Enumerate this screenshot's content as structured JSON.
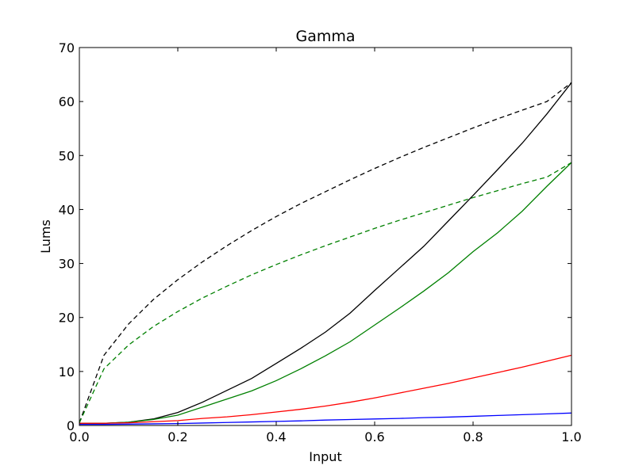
{
  "chart_data": {
    "type": "line",
    "title": "Gamma",
    "xlabel": "Input",
    "ylabel": "Lums",
    "xlim": [
      0.0,
      1.0
    ],
    "ylim": [
      0,
      70
    ],
    "x_ticks": [
      "0.0",
      "0.2",
      "0.4",
      "0.6",
      "0.8",
      "1.0"
    ],
    "y_ticks": [
      "0",
      "10",
      "20",
      "30",
      "40",
      "50",
      "60",
      "70"
    ],
    "grid": false,
    "legend": "none",
    "series": [
      {
        "color": "#000000",
        "dashed": true,
        "x": [
          0.0,
          0.05,
          0.1,
          0.15,
          0.2,
          0.25,
          0.3,
          0.35,
          0.4,
          0.45,
          0.5,
          0.55,
          0.6,
          0.65,
          0.7,
          0.75,
          0.8,
          0.85,
          0.9,
          0.95,
          1.0
        ],
        "y": [
          0.5,
          13.0,
          18.8,
          23.3,
          27.0,
          30.3,
          33.3,
          36.1,
          38.7,
          41.1,
          43.3,
          45.5,
          47.6,
          49.6,
          51.5,
          53.3,
          55.1,
          56.8,
          58.4,
          60.0,
          63.5
        ]
      },
      {
        "color": "#008000",
        "dashed": true,
        "x": [
          0.0,
          0.05,
          0.1,
          0.15,
          0.2,
          0.25,
          0.3,
          0.35,
          0.4,
          0.45,
          0.5,
          0.55,
          0.6,
          0.65,
          0.7,
          0.75,
          0.8,
          0.85,
          0.9,
          0.95,
          1.0
        ],
        "y": [
          0.5,
          10.5,
          14.9,
          18.3,
          21.1,
          23.6,
          25.8,
          27.9,
          29.8,
          31.6,
          33.3,
          34.9,
          36.5,
          38.0,
          39.4,
          40.8,
          42.2,
          43.5,
          44.8,
          46.0,
          48.7
        ]
      },
      {
        "color": "#000000",
        "dashed": false,
        "x": [
          0.0,
          0.05,
          0.1,
          0.15,
          0.2,
          0.25,
          0.3,
          0.35,
          0.4,
          0.45,
          0.5,
          0.55,
          0.6,
          0.65,
          0.7,
          0.75,
          0.8,
          0.85,
          0.9,
          0.95,
          1.0
        ],
        "y": [
          0.4,
          0.4,
          0.6,
          1.2,
          2.4,
          4.3,
          6.5,
          8.7,
          11.5,
          14.3,
          17.3,
          20.8,
          25.0,
          29.1,
          33.2,
          37.9,
          42.6,
          47.4,
          52.3,
          57.7,
          63.5
        ]
      },
      {
        "color": "#008000",
        "dashed": false,
        "x": [
          0.0,
          0.05,
          0.1,
          0.15,
          0.2,
          0.25,
          0.3,
          0.35,
          0.4,
          0.45,
          0.5,
          0.55,
          0.6,
          0.65,
          0.7,
          0.75,
          0.8,
          0.85,
          0.9,
          0.95,
          1.0
        ],
        "y": [
          0.4,
          0.4,
          0.6,
          1.1,
          1.9,
          3.4,
          4.9,
          6.4,
          8.3,
          10.5,
          12.9,
          15.5,
          18.6,
          21.7,
          24.9,
          28.3,
          32.2,
          35.7,
          39.7,
          44.3,
          48.7
        ]
      },
      {
        "color": "#ff0000",
        "dashed": false,
        "x": [
          0.0,
          0.05,
          0.1,
          0.15,
          0.2,
          0.25,
          0.3,
          0.35,
          0.4,
          0.45,
          0.5,
          0.55,
          0.6,
          0.65,
          0.7,
          0.75,
          0.8,
          0.85,
          0.9,
          0.95,
          1.0
        ],
        "y": [
          0.4,
          0.4,
          0.5,
          0.7,
          0.9,
          1.3,
          1.6,
          2.0,
          2.5,
          3.0,
          3.6,
          4.3,
          5.1,
          6.0,
          6.9,
          7.8,
          8.8,
          9.8,
          10.8,
          11.9,
          13.0
        ]
      },
      {
        "color": "#0000ff",
        "dashed": false,
        "x": [
          0.0,
          0.05,
          0.1,
          0.15,
          0.2,
          0.25,
          0.3,
          0.35,
          0.4,
          0.45,
          0.5,
          0.55,
          0.6,
          0.65,
          0.7,
          0.75,
          0.8,
          0.85,
          0.9,
          0.95,
          1.0
        ],
        "y": [
          0.2,
          0.2,
          0.25,
          0.3,
          0.35,
          0.45,
          0.55,
          0.65,
          0.75,
          0.85,
          1.0,
          1.1,
          1.2,
          1.3,
          1.45,
          1.55,
          1.7,
          1.85,
          2.0,
          2.15,
          2.3
        ]
      }
    ]
  }
}
